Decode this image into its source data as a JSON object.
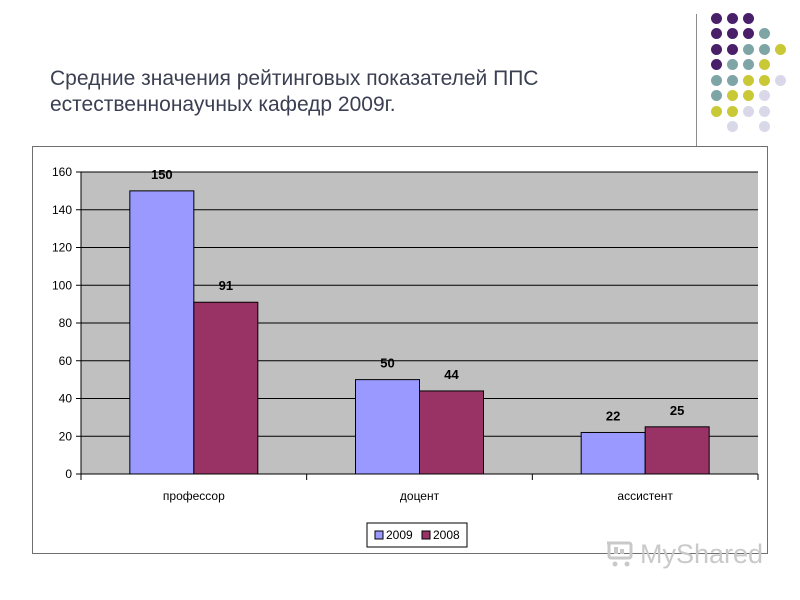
{
  "title_line1": "Средние значения рейтинговых показателей ППС",
  "title_line2": "естественнонаучных кафедр 2009г.",
  "watermark": "MyShared",
  "colors": {
    "purple_dot": "#4a1f6a",
    "teal_dot": "#7ea5a6",
    "olive_dot": "#c9c937",
    "lavender_dot": "#d8d8e8",
    "plot_bg": "#c0c0c0",
    "series_2009": "#9999ff",
    "series_2008": "#993366"
  },
  "chart_data": {
    "type": "bar",
    "categories": [
      "профессор",
      "доцент",
      "ассистент"
    ],
    "series": [
      {
        "name": "2009",
        "values": [
          150,
          50,
          22
        ]
      },
      {
        "name": "2008",
        "values": [
          91,
          44,
          25
        ]
      }
    ],
    "yticks": [
      "0",
      "20",
      "40",
      "60",
      "80",
      "100",
      "120",
      "140",
      "160"
    ],
    "ylim": [
      0,
      160
    ],
    "grid": true,
    "legend_position": "bottom"
  }
}
